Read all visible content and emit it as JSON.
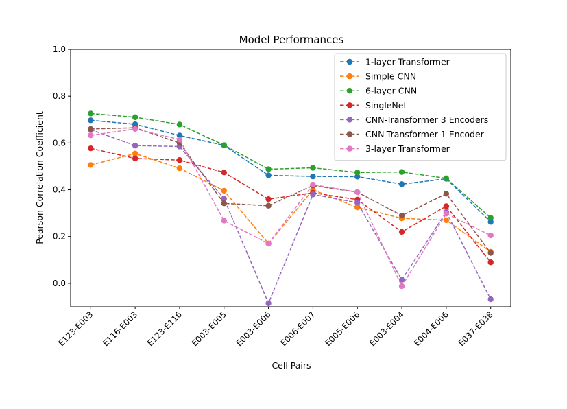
{
  "chart_data": {
    "type": "line",
    "title": "Model Performances",
    "xlabel": "Cell Pairs",
    "ylabel": "Pearson Correlation Coefficient",
    "categories": [
      "E123-E003",
      "E116-E003",
      "E123-E116",
      "E003-E005",
      "E003-E006",
      "E006-E007",
      "E005-E006",
      "E003-E004",
      "E004-E006",
      "E037-E038"
    ],
    "ylim": [
      -0.1,
      1.0
    ],
    "yticks": [
      "0.0",
      "0.2",
      "0.4",
      "0.6",
      "0.8",
      "1.0"
    ],
    "grid": false,
    "legend_position": "top-right",
    "line_style": "dashed",
    "series": [
      {
        "name": "1-layer Transformer",
        "color": "#1f77b4",
        "values": [
          0.697,
          0.68,
          0.632,
          0.59,
          0.462,
          0.457,
          0.456,
          0.424,
          0.447,
          0.263
        ]
      },
      {
        "name": "Simple CNN",
        "color": "#ff7f0e",
        "values": [
          0.506,
          0.555,
          0.492,
          0.396,
          0.17,
          0.4,
          0.325,
          0.278,
          0.27,
          0.135
        ]
      },
      {
        "name": "6-layer CNN",
        "color": "#2ca02c",
        "values": [
          0.726,
          0.71,
          0.679,
          0.591,
          0.488,
          0.494,
          0.474,
          0.476,
          0.449,
          0.28
        ]
      },
      {
        "name": "SingleNet",
        "color": "#d62728",
        "values": [
          0.577,
          0.534,
          0.527,
          0.474,
          0.36,
          0.387,
          0.358,
          0.22,
          0.33,
          0.09
        ]
      },
      {
        "name": "CNN-Transformer 3 Encoders",
        "color": "#9467bd",
        "values": [
          0.657,
          0.589,
          0.585,
          0.362,
          -0.085,
          0.38,
          0.345,
          0.015,
          0.305,
          -0.068
        ]
      },
      {
        "name": "CNN-Transformer 1 Encoder",
        "color": "#8c564b",
        "values": [
          0.66,
          0.665,
          0.6,
          0.342,
          0.332,
          0.418,
          0.39,
          0.29,
          0.383,
          0.13
        ]
      },
      {
        "name": "3-layer Transformer",
        "color": "#e377c2",
        "values": [
          0.633,
          0.66,
          0.615,
          0.268,
          0.17,
          0.422,
          0.39,
          -0.012,
          0.298,
          0.205
        ]
      }
    ]
  }
}
